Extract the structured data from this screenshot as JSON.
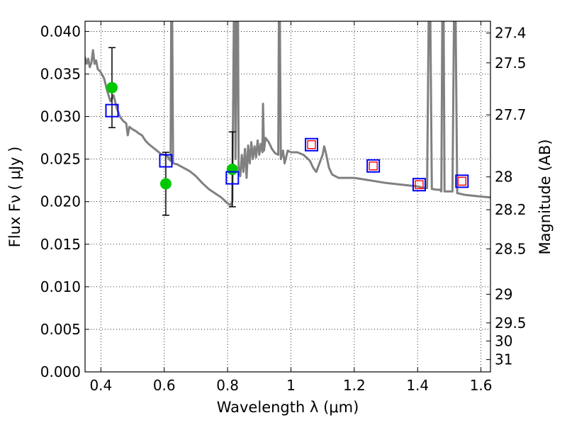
{
  "chart_data": {
    "type": "scatter",
    "xlabel": "Wavelength  λ (μm)",
    "ylabel": "Flux  Fν  ( μJy )",
    "y2label": "Magnitude (AB)",
    "xlim": [
      0.35,
      1.63
    ],
    "ylim": [
      0.0,
      0.0412
    ],
    "grid": true,
    "x_ticks": [
      0.4,
      0.6,
      0.8,
      1.0,
      1.2,
      1.4,
      1.6
    ],
    "x_tick_labels": [
      "0.4",
      "0.6",
      "0.8",
      "1",
      "1.2",
      "1.4",
      "1.6"
    ],
    "y_ticks": [
      0.0,
      0.005,
      0.01,
      0.015,
      0.02,
      0.025,
      0.03,
      0.035,
      0.04
    ],
    "y_tick_labels": [
      "0.000",
      "0.005",
      "0.010",
      "0.015",
      "0.020",
      "0.025",
      "0.030",
      "0.035",
      "0.040"
    ],
    "mag_ticks": [
      27.4,
      27.5,
      27.7,
      28,
      28.2,
      28.5,
      29,
      29.5,
      30,
      31
    ],
    "mag_tick_labels": [
      "27.4",
      "27.5",
      "27.7",
      "28",
      "28.2",
      "28.5",
      "29",
      "29.5",
      "30",
      "31"
    ],
    "series": [
      {
        "kind": "line",
        "color": "#808080",
        "points": [
          [
            0.35,
            0.037
          ],
          [
            0.355,
            0.0362
          ],
          [
            0.36,
            0.0368
          ],
          [
            0.365,
            0.0358
          ],
          [
            0.37,
            0.0363
          ],
          [
            0.375,
            0.0378
          ],
          [
            0.38,
            0.0362
          ],
          [
            0.385,
            0.0366
          ],
          [
            0.39,
            0.0356
          ],
          [
            0.4,
            0.0352
          ],
          [
            0.41,
            0.0345
          ],
          [
            0.42,
            0.033
          ],
          [
            0.43,
            0.0318
          ],
          [
            0.44,
            0.0325
          ],
          [
            0.45,
            0.031
          ],
          [
            0.46,
            0.03
          ],
          [
            0.47,
            0.0295
          ],
          [
            0.48,
            0.0292
          ],
          [
            0.485,
            0.0278
          ],
          [
            0.49,
            0.0288
          ],
          [
            0.5,
            0.0285
          ],
          [
            0.51,
            0.0283
          ],
          [
            0.52,
            0.028
          ],
          [
            0.53,
            0.0278
          ],
          [
            0.54,
            0.0272
          ],
          [
            0.55,
            0.0268
          ],
          [
            0.56,
            0.0265
          ],
          [
            0.57,
            0.0262
          ],
          [
            0.58,
            0.0259
          ],
          [
            0.59,
            0.0256
          ],
          [
            0.6,
            0.0255
          ],
          [
            0.61,
            0.0254
          ],
          [
            0.615,
            0.025
          ],
          [
            0.62,
            0.0248
          ],
          [
            0.622,
            0.042
          ],
          [
            0.625,
            0.042
          ],
          [
            0.628,
            0.0245
          ],
          [
            0.64,
            0.0244
          ],
          [
            0.66,
            0.024
          ],
          [
            0.68,
            0.0236
          ],
          [
            0.7,
            0.023
          ],
          [
            0.72,
            0.0222
          ],
          [
            0.74,
            0.0215
          ],
          [
            0.76,
            0.021
          ],
          [
            0.78,
            0.0205
          ],
          [
            0.8,
            0.0198
          ],
          [
            0.81,
            0.0196
          ],
          [
            0.815,
            0.02
          ],
          [
            0.82,
            0.042
          ],
          [
            0.823,
            0.042
          ],
          [
            0.825,
            0.025
          ],
          [
            0.83,
            0.042
          ],
          [
            0.833,
            0.042
          ],
          [
            0.835,
            0.024
          ],
          [
            0.84,
            0.023
          ],
          [
            0.845,
            0.0255
          ],
          [
            0.85,
            0.0235
          ],
          [
            0.855,
            0.0262
          ],
          [
            0.86,
            0.0228
          ],
          [
            0.865,
            0.0266
          ],
          [
            0.87,
            0.0245
          ],
          [
            0.875,
            0.027
          ],
          [
            0.88,
            0.025
          ],
          [
            0.885,
            0.0265
          ],
          [
            0.89,
            0.0252
          ],
          [
            0.895,
            0.0272
          ],
          [
            0.9,
            0.0255
          ],
          [
            0.905,
            0.0268
          ],
          [
            0.91,
            0.0258
          ],
          [
            0.912,
            0.0315
          ],
          [
            0.915,
            0.026
          ],
          [
            0.92,
            0.0275
          ],
          [
            0.93,
            0.027
          ],
          [
            0.94,
            0.0262
          ],
          [
            0.95,
            0.0257
          ],
          [
            0.96,
            0.0255
          ],
          [
            0.962,
            0.042
          ],
          [
            0.965,
            0.042
          ],
          [
            0.968,
            0.025
          ],
          [
            0.975,
            0.026
          ],
          [
            0.98,
            0.0245
          ],
          [
            0.99,
            0.026
          ],
          [
            1.0,
            0.0258
          ],
          [
            1.02,
            0.0258
          ],
          [
            1.04,
            0.0255
          ],
          [
            1.06,
            0.0248
          ],
          [
            1.07,
            0.024
          ],
          [
            1.08,
            0.0235
          ],
          [
            1.09,
            0.0245
          ],
          [
            1.1,
            0.0255
          ],
          [
            1.105,
            0.0265
          ],
          [
            1.11,
            0.0258
          ],
          [
            1.12,
            0.024
          ],
          [
            1.13,
            0.0232
          ],
          [
            1.14,
            0.023
          ],
          [
            1.15,
            0.0228
          ],
          [
            1.2,
            0.0228
          ],
          [
            1.25,
            0.0225
          ],
          [
            1.3,
            0.0222
          ],
          [
            1.35,
            0.022
          ],
          [
            1.4,
            0.0218
          ],
          [
            1.42,
            0.0216
          ],
          [
            1.43,
            0.0216
          ],
          [
            1.435,
            0.042
          ],
          [
            1.44,
            0.042
          ],
          [
            1.445,
            0.0215
          ],
          [
            1.46,
            0.0214
          ],
          [
            1.47,
            0.0214
          ],
          [
            1.475,
            0.0212
          ],
          [
            1.478,
            0.042
          ],
          [
            1.482,
            0.042
          ],
          [
            1.485,
            0.0212
          ],
          [
            1.5,
            0.0212
          ],
          [
            1.51,
            0.0212
          ],
          [
            1.515,
            0.042
          ],
          [
            1.52,
            0.042
          ],
          [
            1.525,
            0.021
          ],
          [
            1.55,
            0.0208
          ],
          [
            1.6,
            0.0206
          ],
          [
            1.63,
            0.0205
          ]
        ]
      },
      {
        "kind": "filled-circle",
        "color": "#00c800",
        "x": [
          0.435,
          0.605,
          0.815
        ],
        "y": [
          0.0334,
          0.0221,
          0.0238
        ],
        "yerr": [
          0.0047,
          0.0037,
          0.0044
        ]
      },
      {
        "kind": "open-square",
        "color": "#0000ff",
        "x": [
          0.435,
          0.605,
          0.815,
          1.065,
          1.26,
          1.405,
          1.54
        ],
        "y": [
          0.0307,
          0.0248,
          0.0228,
          0.0267,
          0.0242,
          0.022,
          0.0224
        ]
      },
      {
        "kind": "open-square-small",
        "color": "#ff0000",
        "x": [
          1.065,
          1.26,
          1.405,
          1.54
        ],
        "y": [
          0.0267,
          0.0242,
          0.022,
          0.0224
        ]
      }
    ]
  }
}
